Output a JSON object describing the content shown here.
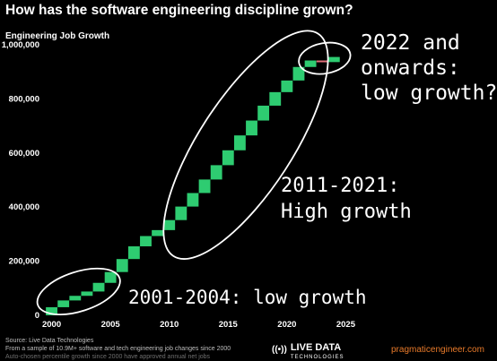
{
  "page": {
    "title": "How has the software engineering discipline grown?"
  },
  "chart_data": {
    "type": "waterfall",
    "ylabel": "Engineering Job Growth",
    "x_range": [
      1999.5,
      2025.5
    ],
    "ylim": [
      0,
      1000000
    ],
    "x_ticks": [
      2000,
      2005,
      2010,
      2015,
      2020,
      2025
    ],
    "y_ticks": [
      0,
      200000,
      400000,
      600000,
      800000,
      1000000
    ],
    "y_tick_labels": [
      "0",
      "200,000",
      "400,000",
      "600,000",
      "800,000",
      "1,000,000"
    ],
    "grid": false,
    "colors": {
      "increase": "#2ecc71",
      "decrease": "#e0707a"
    },
    "steps": [
      {
        "year": 2000,
        "start": 0,
        "end": 30000
      },
      {
        "year": 2001,
        "start": 30000,
        "end": 55000
      },
      {
        "year": 2002,
        "start": 55000,
        "end": 72000
      },
      {
        "year": 2003,
        "start": 72000,
        "end": 88000
      },
      {
        "year": 2004,
        "start": 88000,
        "end": 120000
      },
      {
        "year": 2005,
        "start": 120000,
        "end": 160000
      },
      {
        "year": 2006,
        "start": 160000,
        "end": 208000
      },
      {
        "year": 2007,
        "start": 208000,
        "end": 255000
      },
      {
        "year": 2008,
        "start": 255000,
        "end": 293000
      },
      {
        "year": 2009,
        "start": 293000,
        "end": 315000
      },
      {
        "year": 2010,
        "start": 315000,
        "end": 352000
      },
      {
        "year": 2011,
        "start": 352000,
        "end": 402000
      },
      {
        "year": 2012,
        "start": 402000,
        "end": 452000
      },
      {
        "year": 2013,
        "start": 452000,
        "end": 502000
      },
      {
        "year": 2014,
        "start": 502000,
        "end": 555000
      },
      {
        "year": 2015,
        "start": 555000,
        "end": 610000
      },
      {
        "year": 2016,
        "start": 610000,
        "end": 665000
      },
      {
        "year": 2017,
        "start": 665000,
        "end": 720000
      },
      {
        "year": 2018,
        "start": 720000,
        "end": 775000
      },
      {
        "year": 2019,
        "start": 775000,
        "end": 825000
      },
      {
        "year": 2020,
        "start": 825000,
        "end": 868000
      },
      {
        "year": 2021,
        "start": 868000,
        "end": 918000
      },
      {
        "year": 2022,
        "start": 918000,
        "end": 942000
      },
      {
        "year": 2023,
        "start": 942000,
        "end": 936000
      },
      {
        "year": 2024,
        "start": 936000,
        "end": 955000
      }
    ],
    "annotations": [
      {
        "id": "late",
        "lines": [
          "2022 and",
          "onwards:",
          "low growth?"
        ]
      },
      {
        "id": "mid",
        "lines": [
          "2011-2021:",
          "High growth"
        ]
      },
      {
        "id": "early",
        "lines": [
          "2001-2004: low growth"
        ]
      }
    ]
  },
  "footer": {
    "source_line1": "Source: Live Data Technologies",
    "source_line2": "From a sample of 10.9M+ software and tech engineering job changes since 2000",
    "source_line3": "Auto-chosen percentile growth since 2000 have approved annual net jobs",
    "brand_mark": "((•))",
    "brand_name": "LIVE DATA",
    "brand_sub": "TECHNOLOGIES",
    "watermark": "pragmaticengineer.com"
  }
}
